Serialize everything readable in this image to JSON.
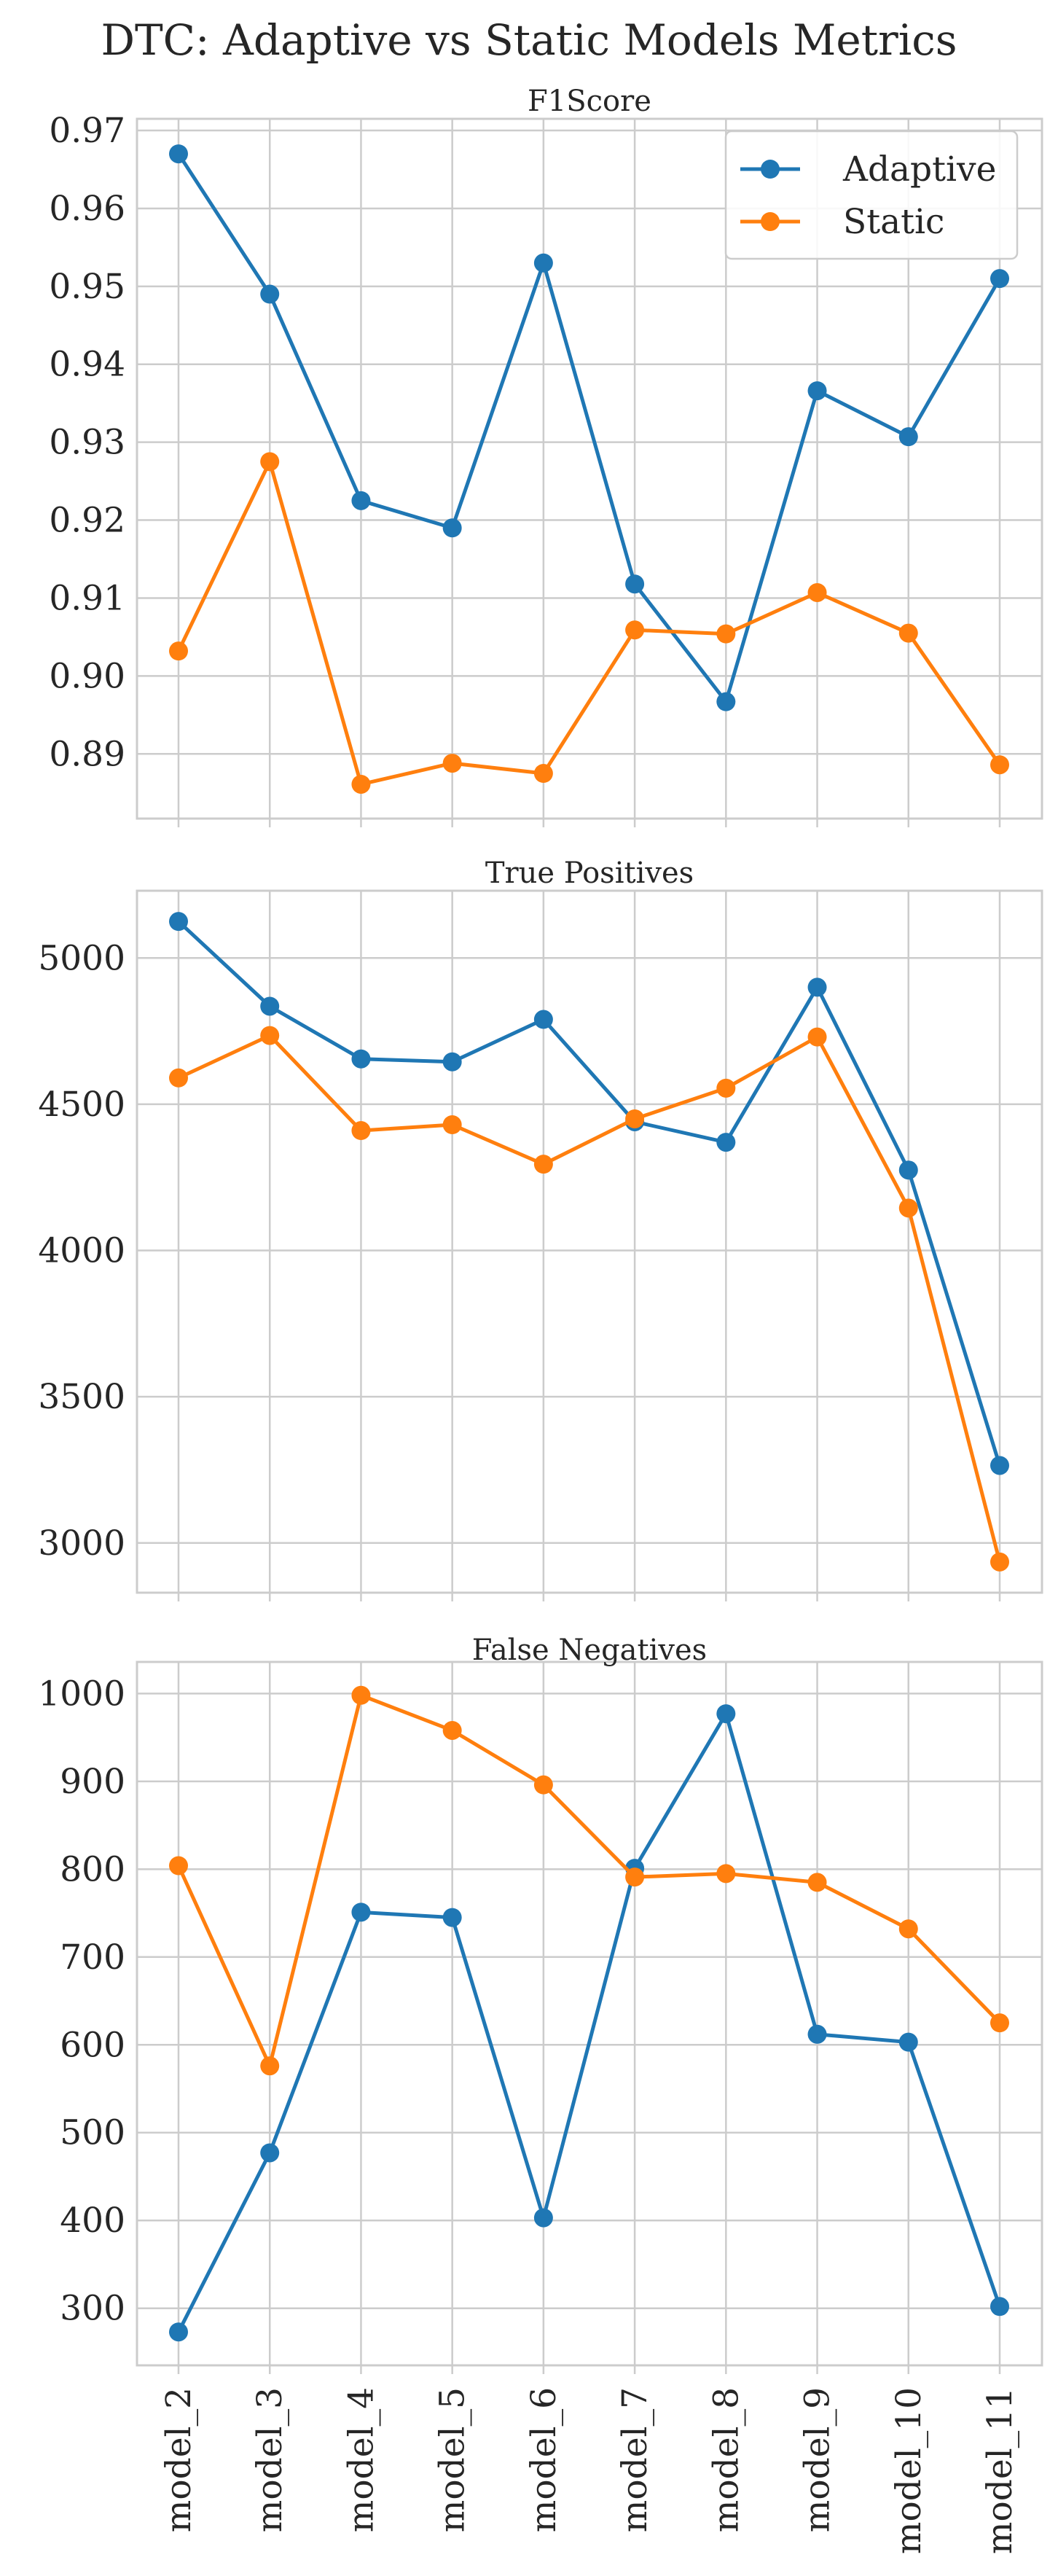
{
  "figure_title": "DTC: Adaptive vs Static Models Metrics",
  "colors": {
    "Adaptive": "#1f77b4",
    "Static": "#ff7f0e"
  },
  "chart_data": [
    {
      "type": "line",
      "title": "F1Score",
      "categories": [
        "model_2",
        "model_3",
        "model_4",
        "model_5",
        "model_6",
        "model_7",
        "model_8",
        "model_9",
        "model_10",
        "model_11"
      ],
      "ylim": [
        0.8817,
        0.9715
      ],
      "yticks": [
        0.89,
        0.9,
        0.91,
        0.92,
        0.93,
        0.94,
        0.95,
        0.96,
        0.97
      ],
      "ytick_labels": [
        "0.89",
        "0.90",
        "0.91",
        "0.92",
        "0.93",
        "0.94",
        "0.95",
        "0.96",
        "0.97"
      ],
      "legend": "top-right",
      "series": [
        {
          "name": "Adaptive",
          "values": [
            0.967,
            0.949,
            0.9225,
            0.919,
            0.953,
            0.9118,
            0.8967,
            0.9366,
            0.9307,
            0.951
          ]
        },
        {
          "name": "Static",
          "values": [
            0.9032,
            0.9275,
            0.8861,
            0.8888,
            0.8875,
            0.9059,
            0.9054,
            0.9107,
            0.9055,
            0.8886
          ]
        }
      ]
    },
    {
      "type": "line",
      "title": "True Positives",
      "categories": [
        "model_2",
        "model_3",
        "model_4",
        "model_5",
        "model_6",
        "model_7",
        "model_8",
        "model_9",
        "model_10",
        "model_11"
      ],
      "ylim": [
        2830,
        5230
      ],
      "yticks": [
        3000,
        3500,
        4000,
        4500,
        5000
      ],
      "ytick_labels": [
        "3000",
        "3500",
        "4000",
        "4500",
        "5000"
      ],
      "series": [
        {
          "name": "Adaptive",
          "values": [
            5125,
            4835,
            4655,
            4645,
            4790,
            4440,
            4370,
            4900,
            4275,
            3265
          ]
        },
        {
          "name": "Static",
          "values": [
            4590,
            4735,
            4410,
            4430,
            4295,
            4450,
            4555,
            4730,
            4145,
            2935
          ]
        }
      ]
    },
    {
      "type": "line",
      "title": "False Negatives",
      "categories": [
        "model_2",
        "model_3",
        "model_4",
        "model_5",
        "model_6",
        "model_7",
        "model_8",
        "model_9",
        "model_10",
        "model_11"
      ],
      "ylim": [
        235,
        1036
      ],
      "yticks": [
        300,
        400,
        500,
        600,
        700,
        800,
        900,
        1000
      ],
      "ytick_labels": [
        "300",
        "400",
        "500",
        "600",
        "700",
        "800",
        "900",
        "1000"
      ],
      "series": [
        {
          "name": "Adaptive",
          "values": [
            273,
            477,
            751,
            745,
            403,
            801,
            977,
            612,
            603,
            302
          ]
        },
        {
          "name": "Static",
          "values": [
            804,
            576,
            998,
            958,
            896,
            791,
            795,
            785,
            732,
            625
          ]
        }
      ]
    }
  ]
}
